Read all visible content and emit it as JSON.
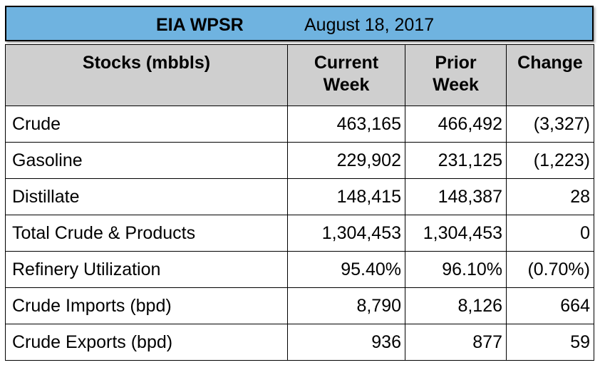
{
  "title": {
    "source": "EIA WPSR",
    "date": "August 18, 2017"
  },
  "columns": {
    "label": "Stocks (mbbls)",
    "current_line1": "Current",
    "current_line2": "Week",
    "prior_line1": "Prior",
    "prior_line2": "Week",
    "change": "Change"
  },
  "rows": [
    {
      "label": "Crude",
      "current": "463,165",
      "prior": "466,492",
      "change": "(3,327)"
    },
    {
      "label": "Gasoline",
      "current": "229,902",
      "prior": "231,125",
      "change": "(1,223)"
    },
    {
      "label": "Distillate",
      "current": "148,415",
      "prior": "148,387",
      "change": "28"
    },
    {
      "label": "Total Crude & Products",
      "current": "1,304,453",
      "prior": "1,304,453",
      "change": "0"
    },
    {
      "label": "Refinery Utilization",
      "current": "95.40%",
      "prior": "96.10%",
      "change": "(0.70%)"
    },
    {
      "label": "Crude Imports (bpd)",
      "current": "8,790",
      "prior": "8,126",
      "change": "664"
    },
    {
      "label": "Crude Exports (bpd)",
      "current": "936",
      "prior": "877",
      "change": "59"
    }
  ]
}
